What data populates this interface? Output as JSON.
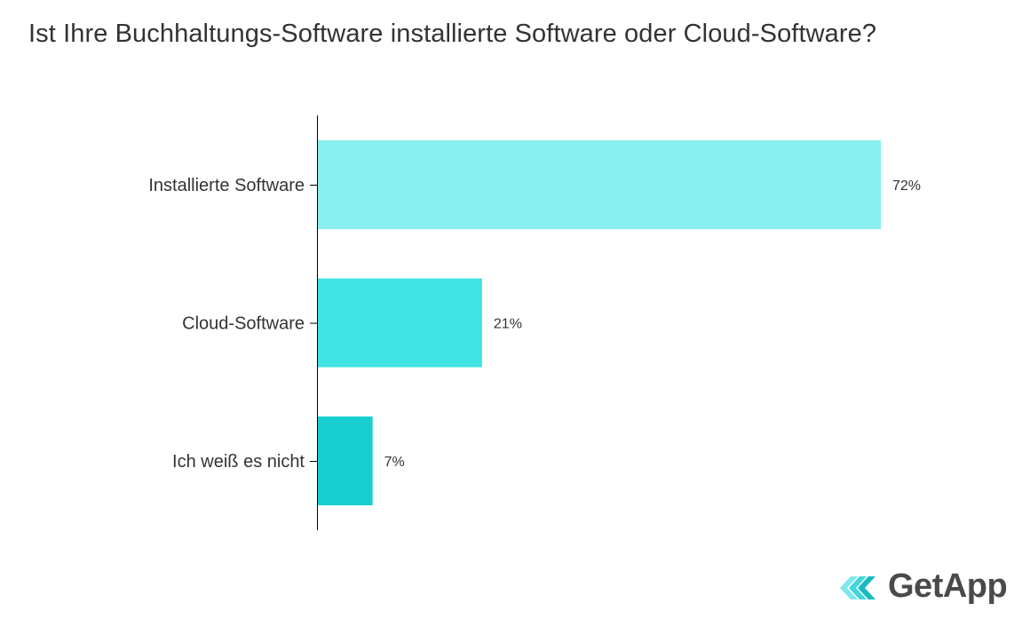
{
  "chart_data": {
    "type": "bar",
    "orientation": "horizontal",
    "title": "Ist Ihre Buchhaltungs-Software installierte Software oder Cloud-Software?",
    "categories": [
      "Installierte Software",
      "Cloud-Software",
      "Ich weiß es nicht"
    ],
    "values": [
      72,
      21,
      7
    ],
    "value_labels": [
      "72%",
      "21%",
      "7%"
    ],
    "unit": "%",
    "colors": [
      "#88EEEE",
      "#40E3E2",
      "#19CECE"
    ],
    "xlim": [
      0,
      72
    ],
    "grid": false,
    "legend": "none"
  },
  "brand": {
    "name": "GetApp",
    "colors": [
      "#7FE8EA",
      "#3FD6DA",
      "#19B9C0"
    ],
    "text_color": "#4A4A4A"
  }
}
